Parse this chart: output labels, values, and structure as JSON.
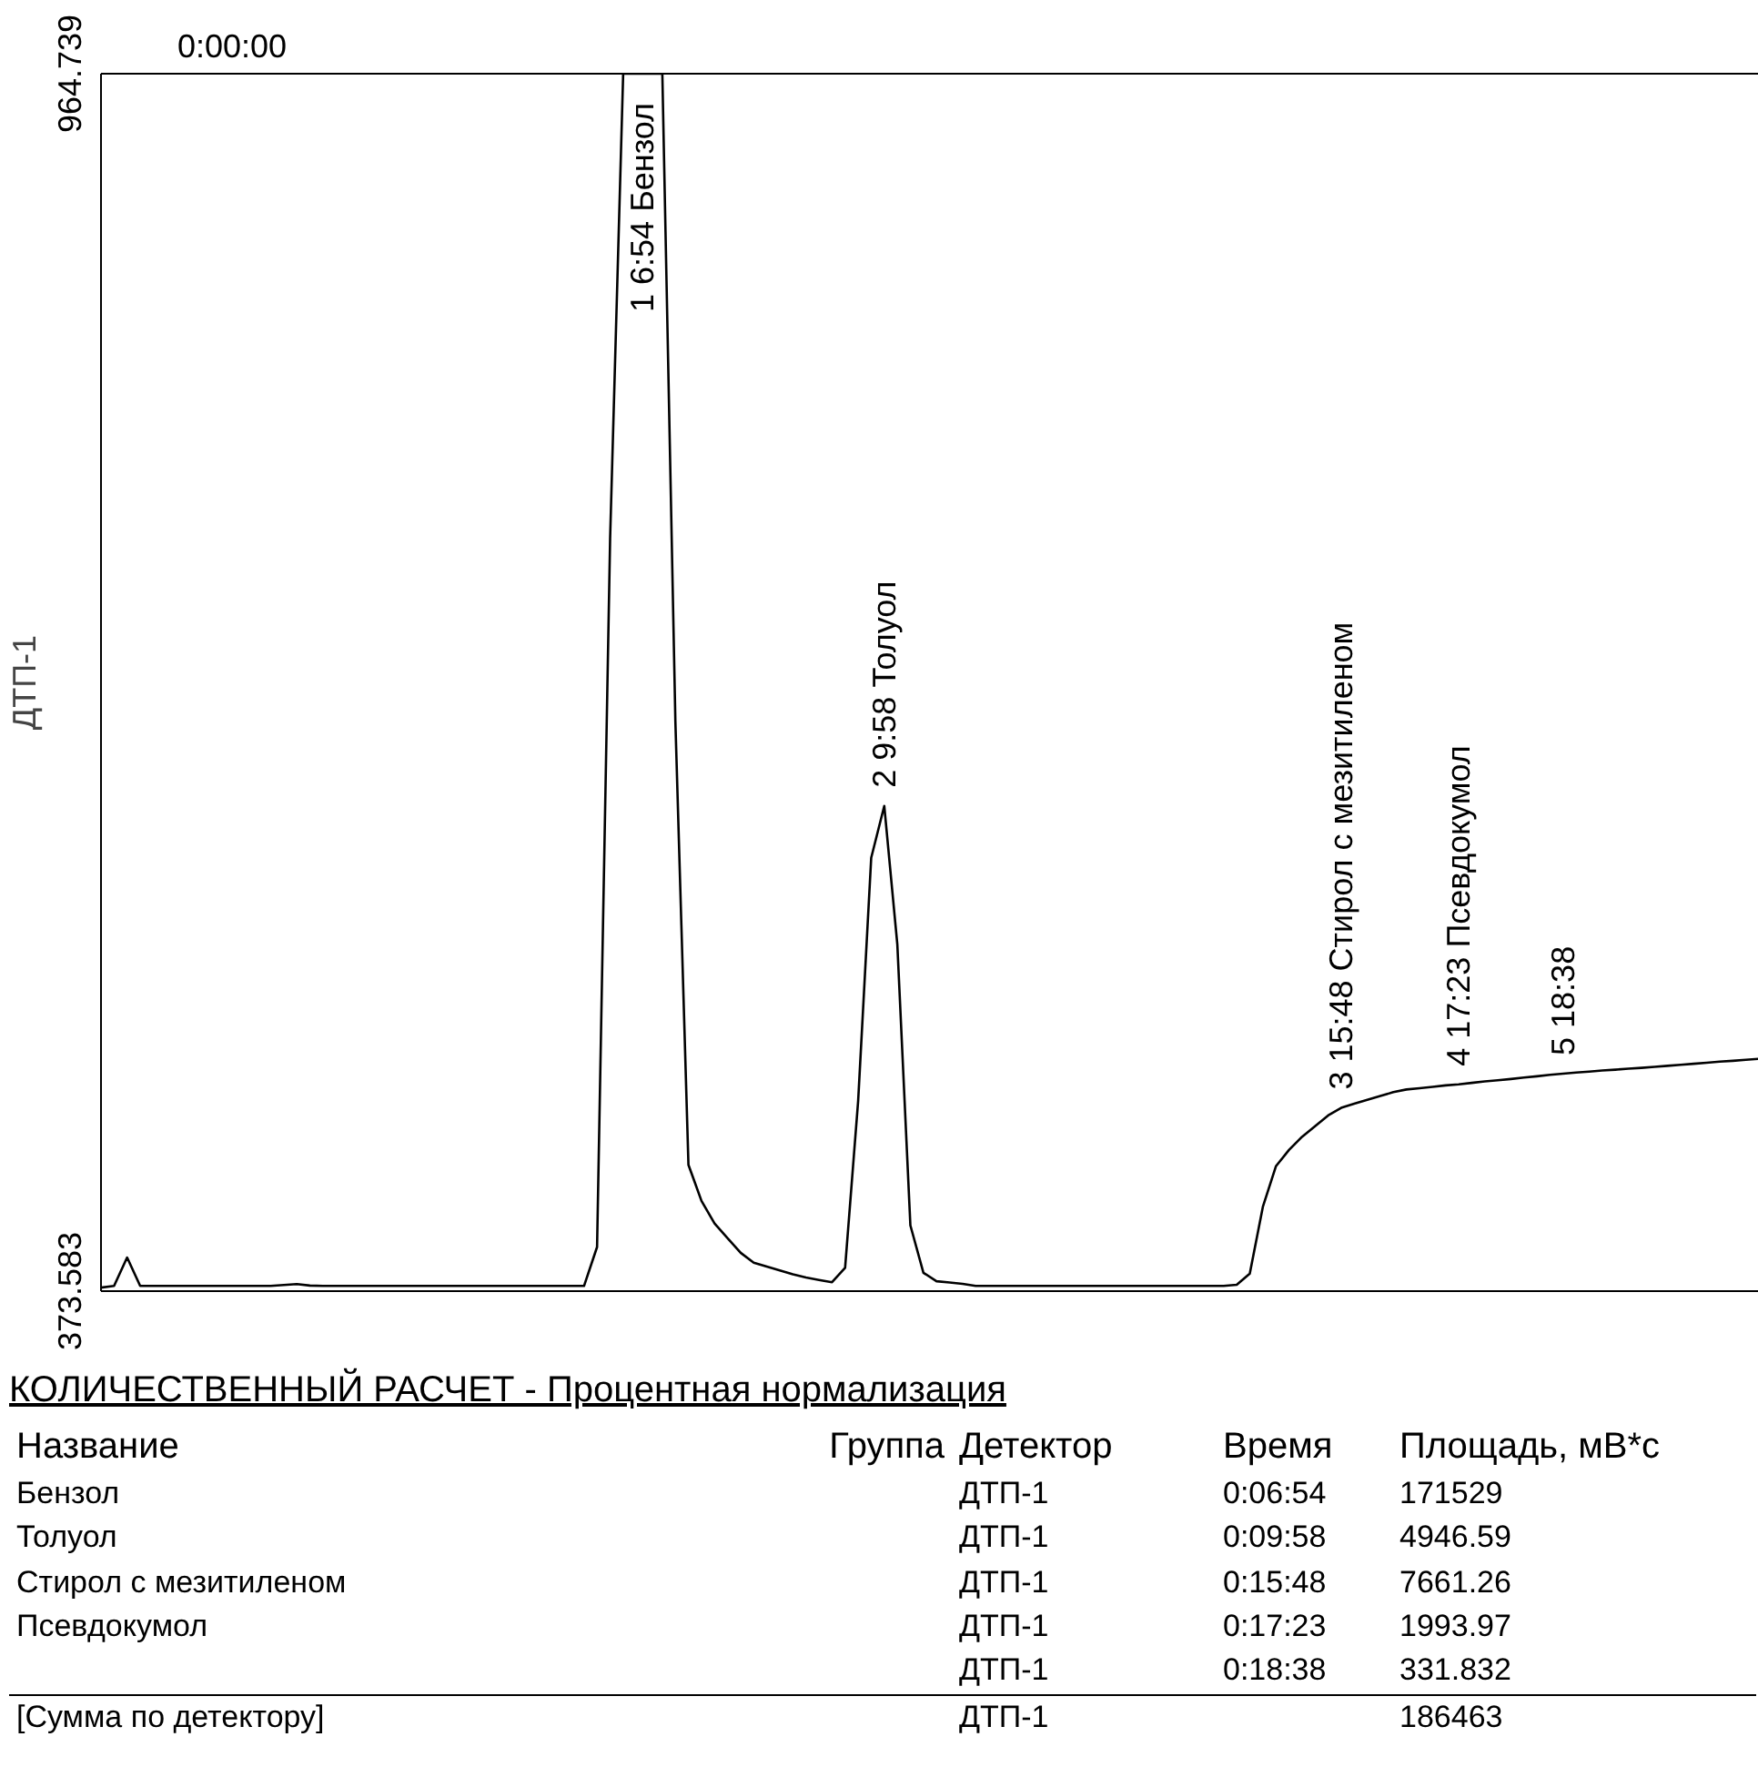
{
  "chart_data": {
    "type": "line",
    "xlabel": "0:00:00",
    "ylabel": "ДТП-1",
    "ylim": [
      373.583,
      964.739
    ],
    "yticks": [
      {
        "value": 373.583,
        "label": "373.583"
      },
      {
        "value": 964.739,
        "label": "964.739"
      }
    ],
    "grid": false,
    "categories": [
      null,
      null,
      null,
      null,
      null,
      null,
      null,
      null,
      null,
      null,
      null,
      null,
      null,
      null,
      null,
      null,
      null,
      null,
      null,
      null,
      null,
      null,
      null,
      null,
      null,
      null,
      null,
      null,
      null,
      null,
      null,
      null,
      null,
      null,
      null,
      null,
      null,
      null,
      null,
      null,
      null,
      null,
      null,
      null,
      null,
      null,
      null,
      null,
      null,
      null,
      null,
      null,
      null,
      null,
      null,
      null,
      null,
      null,
      null,
      null,
      null,
      null,
      null,
      null,
      null,
      null,
      null,
      null,
      null,
      null,
      null,
      null,
      null,
      null,
      null,
      null,
      null,
      null,
      null,
      null,
      null,
      null,
      null,
      null,
      null,
      null,
      null,
      null,
      null,
      null,
      null,
      null,
      null,
      null,
      null,
      null,
      null,
      null,
      null,
      null,
      null,
      null,
      null,
      null,
      null,
      null,
      null,
      null,
      null,
      null,
      null,
      null,
      null,
      null,
      null,
      null,
      null,
      null,
      null,
      null,
      null,
      null,
      null,
      null,
      null,
      null,
      null,
      null
    ],
    "series": [
      {
        "color": "#000000",
        "values": [
          375.3,
          376.1,
          389.9,
          376.1,
          376.1,
          376.1,
          376.1,
          376.1,
          376.1,
          376.1,
          376.1,
          376.1,
          376.1,
          376.1,
          376.6,
          377.0,
          376.3,
          376.1,
          376.1,
          376.1,
          376.1,
          376.1,
          376.1,
          376.1,
          376.1,
          376.1,
          376.1,
          376.1,
          376.1,
          376.1,
          376.1,
          376.1,
          376.1,
          376.1,
          376.1,
          376.1,
          376.1,
          376.1,
          395.0,
          739.3,
          964.739,
          964.739,
          964.739,
          964.739,
          650.0,
          434.9,
          417.4,
          406.4,
          399.3,
          392.2,
          387.4,
          385.5,
          383.6,
          381.8,
          380.2,
          379.0,
          377.9,
          384.9,
          466.0,
          584.0,
          609.2,
          542.0,
          405.5,
          382.5,
          378.4,
          377.8,
          377.1,
          376.1,
          376.1,
          376.1,
          376.1,
          376.1,
          376.1,
          376.1,
          376.1,
          376.1,
          376.1,
          376.1,
          376.1,
          376.1,
          376.1,
          376.1,
          376.1,
          376.1,
          376.1,
          376.1,
          376.1,
          376.7,
          382.1,
          414.5,
          434.2,
          442.1,
          448.5,
          453.7,
          458.9,
          462.6,
          464.6,
          466.5,
          468.3,
          470.2,
          471.5,
          472.1,
          472.8,
          473.5,
          474.0,
          474.7,
          475.4,
          476.0,
          476.6,
          477.3,
          477.9,
          478.6,
          479.2,
          479.7,
          480.2,
          480.7,
          481.1,
          481.6,
          482.0,
          482.5,
          483.0,
          483.5,
          484.0,
          484.5,
          485.0,
          485.4,
          485.9,
          486.4
        ]
      }
    ],
    "annotations": [
      {
        "text": "1  6:54  Бензол",
        "y": 964.739
      },
      {
        "text": "2  9:58  Толуол",
        "y": 609.2
      },
      {
        "text": "3  15:48  Стирол с мезитиленом",
        "y": 462.6
      },
      {
        "text": "4  17:23  Псевдокумол",
        "y": 474.0
      },
      {
        "text": "5  18:38",
        "y": 479.2
      },
      "КОЛИЧЕСТВЕННЫЙ РАСЧЕТ - Процентная нормализация",
      "Название\tГруппа\tДетектор\tВремя\tПлощадь, мВ*с",
      "Бензол\t\tДТП-1\t0:06:54\t171529",
      "Толуол\t\tДТП-1\t0:09:58\t4946.59",
      "Стирол с мезитиленом\t\tДТП-1\t0:15:48\t7661.26",
      "Псевдокумол\t\tДТП-1\t0:17:23\t1993.97",
      "\t\tДТП-1\t0:18:38\t331.832",
      "[Сумма по детектору]\t\tДТП-1\t\t186463"
    ]
  }
}
